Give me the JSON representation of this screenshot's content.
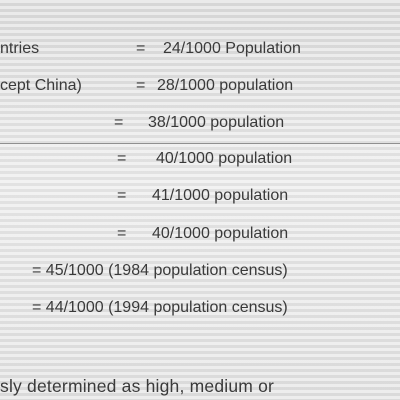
{
  "rows": [
    {
      "label": "ntries",
      "eq": "=",
      "value": "24/1000 Population"
    },
    {
      "label": "cept China)",
      "eq": "=",
      "value": "28/1000 population"
    },
    {
      "label": "",
      "eq": "=",
      "value": "38/1000 population"
    },
    {
      "label": "",
      "eq": "=",
      "value": "40/1000 population"
    },
    {
      "label": "",
      "eq": "=",
      "value": "41/1000 population"
    },
    {
      "label": "",
      "eq": "=",
      "value": "40/1000 population"
    },
    {
      "label": "",
      "eq": "",
      "value": "= 45/1000 (1984 population census)"
    },
    {
      "label": "",
      "eq": "",
      "value": "= 44/1000 (1994 population census)"
    }
  ],
  "paragraph": "sly determined as high, medium or"
}
